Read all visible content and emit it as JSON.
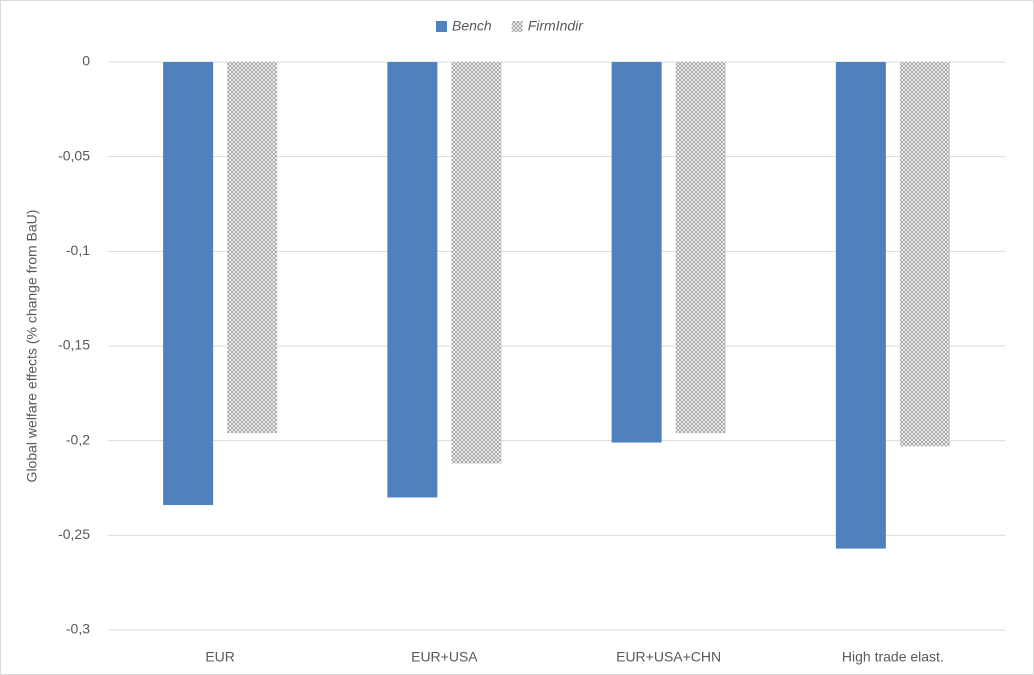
{
  "chart_data": {
    "type": "bar",
    "y_label": "Global welfare effects (% change from BaU)",
    "categories": [
      "EUR",
      "EUR+USA",
      "EUR+USA+CHN",
      "High trade elast."
    ],
    "series": [
      {
        "name": "Bench",
        "color": "#4f81bd",
        "fill_style": "solid",
        "values": [
          -0.234,
          -0.23,
          -0.201,
          -0.257
        ]
      },
      {
        "name": "FirmIndir",
        "color": "#a6a6a6",
        "fill_style": "crosshatch",
        "values": [
          -0.196,
          -0.212,
          -0.196,
          -0.203
        ]
      }
    ],
    "ylim": [
      -0.3,
      0
    ],
    "yticks": [
      0,
      {
        "value": -0.05,
        "label": "-0,05"
      },
      {
        "value": -0.1,
        "label": "-0,1"
      },
      {
        "value": -0.15,
        "label": "-0,15"
      },
      {
        "value": -0.2,
        "label": "-0,2"
      },
      {
        "value": -0.25,
        "label": "-0,25"
      },
      {
        "value": -0.3,
        "label": "-0,3"
      }
    ],
    "grid": true,
    "legend": "top"
  }
}
